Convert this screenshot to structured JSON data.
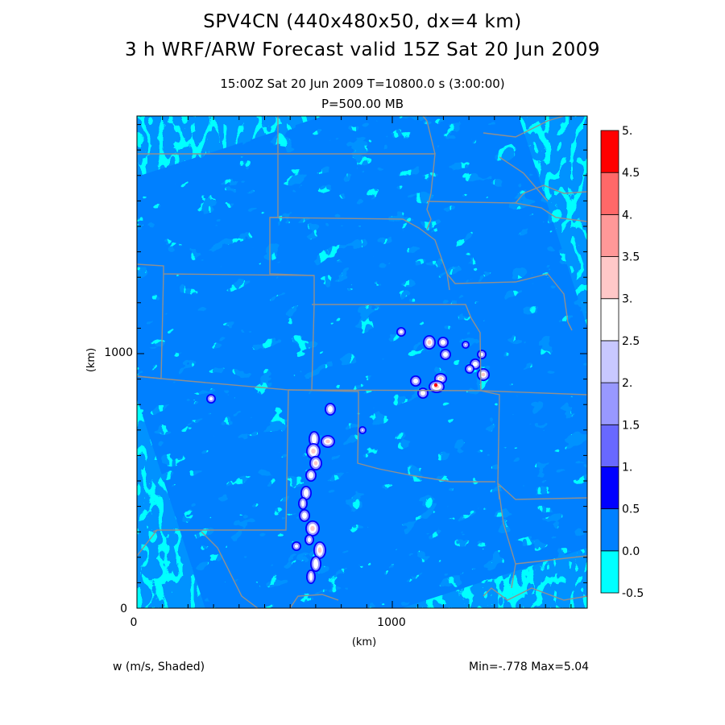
{
  "title_line1": "SPV4CN (440x480x50, dx=4 km)",
  "title_line2": "3 h WRF/ARW Forecast valid 15Z Sat 20 Jun 2009",
  "subtitle_time": "15:00Z Sat 20 Jun 2009     T=10800.0 s (3:00:00)",
  "subtitle_level": "P=500.00 MB",
  "field_label": "w (m/s, Shaded)",
  "min_max": "Min=-.778  Max=5.04",
  "colors": {
    "band_bg": "#00ffff",
    "band_main": "#0080ff",
    "band_dark": "#0000ff",
    "border": "#909090"
  },
  "chart_data": {
    "type": "heatmap",
    "variable": "w",
    "units": "m/s",
    "min": -0.778,
    "max": 5.04,
    "xlabel": "(km)",
    "ylabel": "(km)",
    "x_ticks": [
      "0",
      "1000"
    ],
    "y_ticks": [
      "0",
      "1000"
    ],
    "colorbar": {
      "labels": [
        "-0.5",
        "0.0",
        "0.5",
        "1.",
        "1.5",
        "2.",
        "2.5",
        "3.",
        "3.5",
        "4.",
        "4.5",
        "5."
      ],
      "colors": [
        "#00ffff",
        "#0080ff",
        "#0000ff",
        "#6868ff",
        "#9898ff",
        "#c8c8ff",
        "#ffffff",
        "#ffc8c8",
        "#ff9898",
        "#ff6868",
        "#ff0000"
      ]
    }
  }
}
